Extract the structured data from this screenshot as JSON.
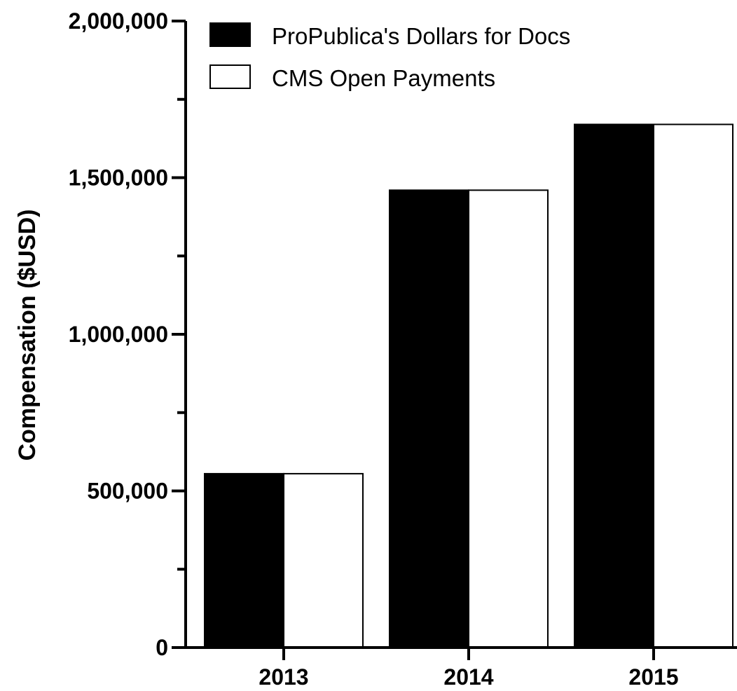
{
  "chart_data": {
    "type": "bar",
    "title": "",
    "xlabel": "",
    "ylabel": "Compensation ($USD)",
    "categories": [
      "2013",
      "2014",
      "2015"
    ],
    "series": [
      {
        "name": "ProPublica's Dollars for Docs",
        "values": [
          555000,
          1460000,
          1670000
        ],
        "fill": "#000000"
      },
      {
        "name": "CMS Open Payments",
        "values": [
          555000,
          1460000,
          1670000
        ],
        "fill": "#ffffff"
      }
    ],
    "ylim": [
      0,
      2000000
    ],
    "yticks": [
      "0",
      "500,000",
      "1,000,000",
      "1,500,000",
      "2,000,000"
    ],
    "ytick_values": [
      0,
      500000,
      1000000,
      1500000,
      2000000
    ],
    "grid": false,
    "legend_position": "top-left"
  }
}
